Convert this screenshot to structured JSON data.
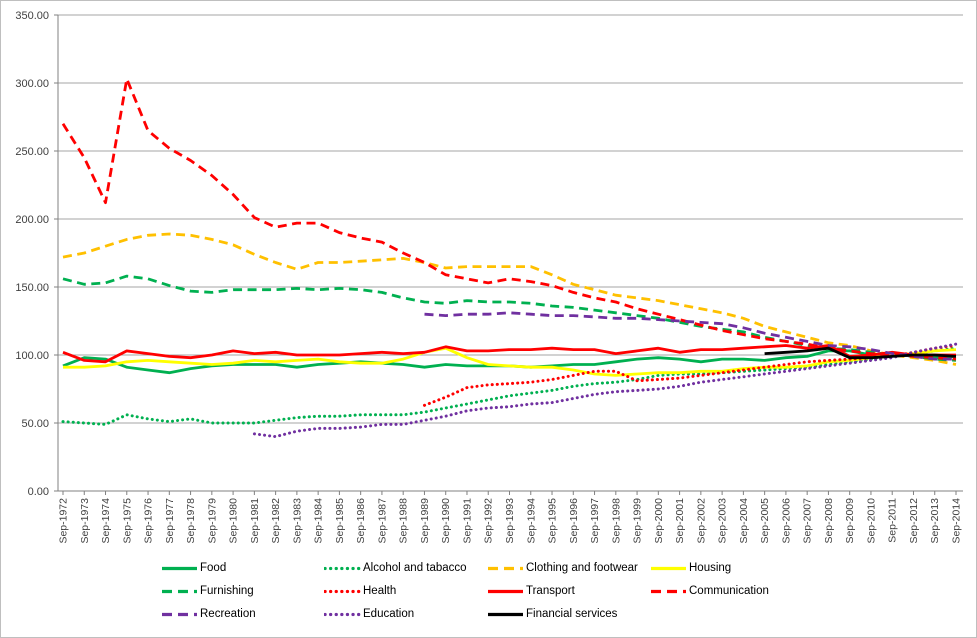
{
  "chart_data": {
    "type": "line",
    "title": "",
    "grid": true,
    "legend_position": "bottom",
    "y_axis": {
      "min": 0,
      "max": 350,
      "step": 50,
      "tick_labels": [
        "0.00",
        "50.00",
        "100.00",
        "150.00",
        "200.00",
        "250.00",
        "300.00",
        "350.00"
      ]
    },
    "x_axis": {
      "label_rotation": -90,
      "categories": [
        "Sep-1972",
        "Sep-1973",
        "Sep-1974",
        "Sep-1975",
        "Sep-1976",
        "Sep-1977",
        "Sep-1978",
        "Sep-1979",
        "Sep-1980",
        "Sep-1981",
        "Sep-1982",
        "Sep-1983",
        "Sep-1984",
        "Sep-1985",
        "Sep-1986",
        "Sep-1987",
        "Sep-1988",
        "Sep-1989",
        "Sep-1990",
        "Sep-1991",
        "Sep-1992",
        "Sep-1993",
        "Sep-1994",
        "Sep-1995",
        "Sep-1996",
        "Sep-1997",
        "Sep-1998",
        "Sep-1999",
        "Sep-2000",
        "Sep-2001",
        "Sep-2002",
        "Sep-2003",
        "Sep-2004",
        "Sep-2005",
        "Sep-2006",
        "Sep-2007",
        "Sep-2008",
        "Sep-2009",
        "Sep-2010",
        "Sep-2011",
        "Sep-2012",
        "Sep-2013",
        "Sep-2014"
      ]
    },
    "series": [
      {
        "name": "Food",
        "color": "#00B050",
        "style": "solid",
        "values": [
          92,
          98,
          97,
          91,
          89,
          87,
          90,
          92,
          93,
          93,
          93,
          91,
          93,
          94,
          95,
          94,
          93,
          91,
          93,
          92,
          92,
          92,
          91,
          92,
          93,
          93,
          95,
          97,
          98,
          97,
          95,
          97,
          97,
          96,
          98,
          99,
          103,
          103,
          100,
          101,
          99,
          98,
          99
        ]
      },
      {
        "name": "Alcohol and tabacco",
        "color": "#00B050",
        "style": "dotted",
        "values": [
          51,
          50,
          49,
          56,
          53,
          51,
          53,
          50,
          50,
          50,
          52,
          54,
          55,
          55,
          56,
          56,
          56,
          58,
          61,
          64,
          67,
          70,
          72,
          74,
          77,
          79,
          80,
          82,
          85,
          86,
          86,
          87,
          88,
          89,
          90,
          91,
          93,
          95,
          97,
          100,
          101,
          103,
          105
        ]
      },
      {
        "name": "Clothing and footwear",
        "color": "#FFC000",
        "style": "dashed",
        "values": [
          172,
          175,
          180,
          185,
          188,
          189,
          188,
          185,
          181,
          174,
          168,
          163,
          168,
          168,
          169,
          170,
          171,
          168,
          164,
          165,
          165,
          165,
          165,
          159,
          152,
          148,
          144,
          142,
          140,
          137,
          134,
          131,
          127,
          121,
          117,
          113,
          109,
          107,
          103,
          100,
          98,
          96,
          93
        ]
      },
      {
        "name": "Housing",
        "color": "#FFFF00",
        "style": "solid",
        "values": [
          91,
          91,
          92,
          95,
          96,
          95,
          94,
          93,
          94,
          96,
          95,
          96,
          97,
          95,
          94,
          94,
          97,
          102,
          105,
          98,
          93,
          92,
          91,
          91,
          89,
          86,
          85,
          86,
          87,
          87,
          88,
          88,
          90,
          91,
          91,
          92,
          95,
          96,
          98,
          100,
          101,
          103,
          104
        ]
      },
      {
        "name": "Furnishing",
        "color": "#00B050",
        "style": "dashed",
        "values": [
          156,
          152,
          153,
          158,
          156,
          151,
          147,
          146,
          148,
          148,
          148,
          149,
          148,
          149,
          148,
          146,
          142,
          139,
          138,
          140,
          139,
          139,
          138,
          136,
          135,
          133,
          131,
          129,
          127,
          124,
          121,
          119,
          117,
          113,
          110,
          107,
          105,
          104,
          102,
          100,
          99,
          97,
          96
        ]
      },
      {
        "name": "Health",
        "color": "#FF0000",
        "style": "dotted",
        "values": [
          null,
          null,
          null,
          null,
          null,
          null,
          null,
          null,
          null,
          null,
          null,
          null,
          null,
          null,
          null,
          null,
          null,
          63,
          69,
          76,
          78,
          79,
          80,
          82,
          85,
          88,
          88,
          81,
          82,
          83,
          85,
          87,
          89,
          91,
          93,
          95,
          96,
          97,
          98,
          99,
          102,
          105,
          107
        ]
      },
      {
        "name": "Transport",
        "color": "#FF0000",
        "style": "solid",
        "values": [
          102,
          96,
          95,
          103,
          101,
          99,
          98,
          100,
          103,
          101,
          102,
          100,
          100,
          100,
          101,
          102,
          101,
          102,
          106,
          103,
          103,
          104,
          104,
          105,
          104,
          104,
          101,
          103,
          105,
          102,
          104,
          104,
          105,
          106,
          107,
          105,
          107,
          99,
          100,
          102,
          100,
          100,
          100
        ]
      },
      {
        "name": "Communication",
        "color": "#FF0000",
        "style": "dashed",
        "values": [
          270,
          245,
          212,
          303,
          265,
          252,
          243,
          232,
          218,
          201,
          194,
          197,
          197,
          190,
          186,
          183,
          175,
          168,
          159,
          156,
          153,
          156,
          154,
          151,
          146,
          142,
          139,
          134,
          130,
          126,
          122,
          118,
          115,
          112,
          110,
          108,
          105,
          103,
          101,
          100,
          99,
          98,
          97
        ]
      },
      {
        "name": "Recreation",
        "color": "#7030A0",
        "style": "dashed",
        "values": [
          null,
          null,
          null,
          null,
          null,
          null,
          null,
          null,
          null,
          null,
          null,
          null,
          null,
          null,
          null,
          null,
          null,
          130,
          129,
          130,
          130,
          131,
          130,
          129,
          129,
          128,
          127,
          127,
          126,
          125,
          124,
          123,
          120,
          116,
          113,
          110,
          107,
          106,
          104,
          101,
          99,
          97,
          97
        ]
      },
      {
        "name": "Education",
        "color": "#7030A0",
        "style": "dotted",
        "values": [
          null,
          null,
          null,
          null,
          null,
          null,
          null,
          null,
          null,
          42,
          40,
          44,
          46,
          46,
          47,
          49,
          49,
          52,
          55,
          59,
          61,
          62,
          64,
          65,
          68,
          71,
          73,
          74,
          75,
          77,
          80,
          82,
          84,
          86,
          88,
          90,
          92,
          94,
          96,
          98,
          102,
          105,
          108
        ]
      },
      {
        "name": "Financial services",
        "color": "#000000",
        "style": "solid",
        "values": [
          null,
          null,
          null,
          null,
          null,
          null,
          null,
          null,
          null,
          null,
          null,
          null,
          null,
          null,
          null,
          null,
          null,
          null,
          null,
          null,
          null,
          null,
          null,
          null,
          null,
          null,
          null,
          null,
          null,
          null,
          null,
          null,
          null,
          101,
          102,
          103,
          105,
          98,
          98,
          99,
          100,
          100,
          99
        ]
      }
    ]
  },
  "colors": {
    "background": "#FFFFFF",
    "border": "#BFBFBF",
    "gridline": "#A6A6A6",
    "axis": "#808080",
    "tick_label": "#3F3F3F"
  }
}
